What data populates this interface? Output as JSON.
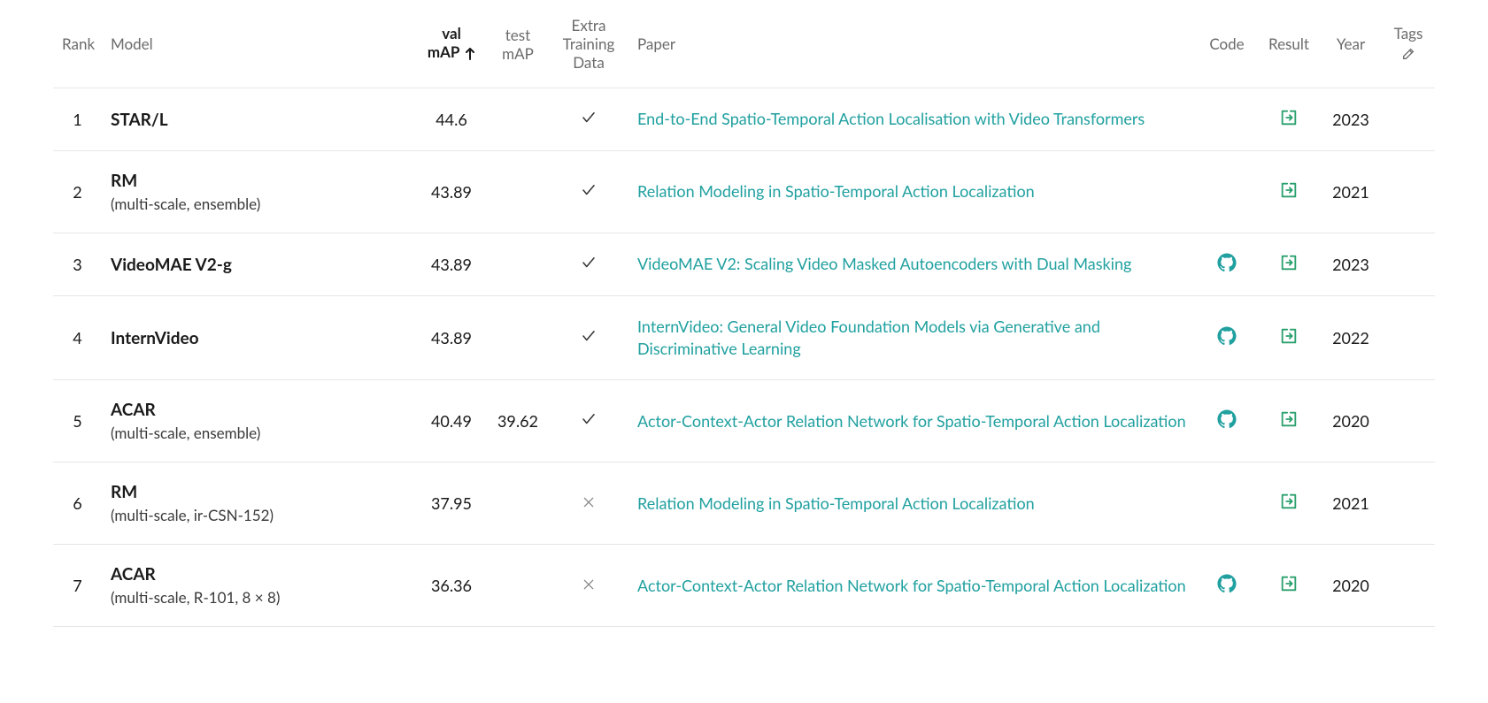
{
  "columns": {
    "rank": "Rank",
    "model": "Model",
    "valmap": "val mAP",
    "testmap": "test mAP",
    "extra": "Extra Training Data",
    "paper": "Paper",
    "code": "Code",
    "result": "Result",
    "year": "Year",
    "tags": "Tags"
  },
  "sort_column": "valmap",
  "sort_direction": "asc",
  "rows": [
    {
      "rank": "1",
      "model": "STAR/L",
      "variant": "",
      "val_map": "44.6",
      "test_map": "",
      "extra": true,
      "paper": "End-to-End Spatio-Temporal Action Localisation with Video Transformers",
      "has_code": false,
      "year": "2023"
    },
    {
      "rank": "2",
      "model": "RM",
      "variant": "(multi-scale, ensemble)",
      "val_map": "43.89",
      "test_map": "",
      "extra": true,
      "paper": "Relation Modeling in Spatio-Temporal Action Localization",
      "has_code": false,
      "year": "2021"
    },
    {
      "rank": "3",
      "model": "VideoMAE V2-g",
      "variant": "",
      "val_map": "43.89",
      "test_map": "",
      "extra": true,
      "paper": "VideoMAE V2: Scaling Video Masked Autoencoders with Dual Masking",
      "has_code": true,
      "year": "2023"
    },
    {
      "rank": "4",
      "model": "InternVideo",
      "variant": "",
      "val_map": "43.89",
      "test_map": "",
      "extra": true,
      "paper": "InternVideo: General Video Foundation Models via Generative and Discriminative Learning",
      "has_code": true,
      "year": "2022"
    },
    {
      "rank": "5",
      "model": "ACAR",
      "variant": "(multi-scale, ensemble)",
      "val_map": "40.49",
      "test_map": "39.62",
      "extra": true,
      "paper": "Actor-Context-Actor Relation Network for Spatio-Temporal Action Localization",
      "has_code": true,
      "year": "2020"
    },
    {
      "rank": "6",
      "model": "RM",
      "variant": "(multi-scale, ir-CSN-152)",
      "val_map": "37.95",
      "test_map": "",
      "extra": false,
      "paper": "Relation Modeling in Spatio-Temporal Action Localization",
      "has_code": false,
      "year": "2021"
    },
    {
      "rank": "7",
      "model": "ACAR",
      "variant": "(multi-scale, R-101, 8 × 8)",
      "val_map": "36.36",
      "test_map": "",
      "extra": false,
      "paper": "Actor-Context-Actor Relation Network for Spatio-Temporal Action Localization",
      "has_code": true,
      "year": "2020"
    }
  ],
  "colors": {
    "link": "#21a0a0",
    "result_icon": "#2aa06e",
    "header_text": "#6b6b6b",
    "body_text": "#1a1a1a",
    "border": "#e6e6e6"
  }
}
